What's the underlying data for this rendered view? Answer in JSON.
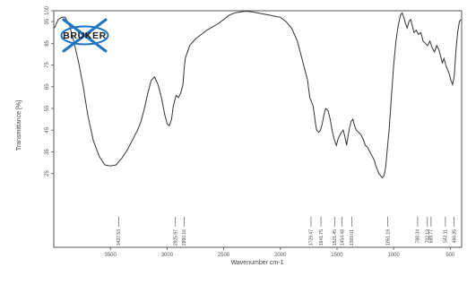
{
  "chart_data": {
    "type": "line",
    "title": "",
    "xlabel": "Wavenumber cm-1",
    "ylabel": "Transmittance [%]",
    "xlim": [
      4000,
      400
    ],
    "ylim": [
      10,
      100
    ],
    "x_ticks": [
      3500,
      3000,
      2500,
      2000,
      1500,
      1000,
      500
    ],
    "x_tick_labels": [
      "3500",
      "3000",
      "2500",
      "2000",
      "1500",
      "1000",
      "500"
    ],
    "y_ticks": [
      25,
      35,
      45,
      55,
      65,
      75,
      85,
      95,
      100
    ],
    "y_tick_labels": [
      "25",
      "35",
      "45",
      "55",
      "65",
      "75",
      "85",
      "95",
      "100"
    ],
    "grid": false,
    "legend": "none",
    "series": [
      {
        "color": "#333333",
        "x": [
          3995,
          3960,
          3930,
          3900,
          3860,
          3820,
          3780,
          3740,
          3700,
          3650,
          3600,
          3550,
          3500,
          3450,
          3400,
          3350,
          3300,
          3260,
          3230,
          3200,
          3170,
          3140,
          3110,
          3080,
          3050,
          3020,
          3000,
          2980,
          2960,
          2945,
          2930,
          2920,
          2900,
          2880,
          2860,
          2851,
          2840,
          2800,
          2750,
          2700,
          2650,
          2600,
          2550,
          2500,
          2450,
          2400,
          2350,
          2300,
          2250,
          2200,
          2150,
          2100,
          2050,
          2000,
          1950,
          1900,
          1850,
          1800,
          1760,
          1740,
          1725,
          1710,
          1700,
          1690,
          1680,
          1660,
          1645,
          1630,
          1615,
          1600,
          1580,
          1560,
          1540,
          1520,
          1505,
          1490,
          1472,
          1460,
          1445,
          1430,
          1415,
          1403,
          1390,
          1375,
          1360,
          1345,
          1330,
          1310,
          1290,
          1270,
          1250,
          1230,
          1210,
          1190,
          1170,
          1160,
          1145,
          1130,
          1115,
          1100,
          1085,
          1070,
          1058,
          1040,
          1020,
          1000,
          980,
          960,
          940,
          925,
          910,
          895,
          880,
          865,
          850,
          835,
          820,
          800,
          780,
          760,
          740,
          720,
          700,
          680,
          660,
          640,
          620,
          600,
          585,
          570,
          555,
          540,
          525,
          510,
          495,
          480,
          465,
          450,
          435,
          420,
          405
        ],
        "y": [
          92,
          96,
          97,
          97,
          93,
          85,
          76,
          65,
          52,
          40,
          33,
          29,
          28.5,
          29,
          32,
          36,
          41,
          45,
          49,
          55,
          62,
          68,
          69.5,
          66,
          60,
          52,
          48,
          47,
          50,
          56,
          59,
          61,
          60,
          62,
          66,
          72,
          78,
          84,
          87,
          89,
          91,
          92.5,
          94,
          96,
          98,
          99,
          99.5,
          99.8,
          99.5,
          99,
          98.5,
          98,
          97.5,
          97,
          95,
          92,
          86,
          76,
          68,
          60,
          58,
          56,
          52,
          48,
          45,
          44,
          45,
          48,
          52,
          55,
          54,
          50,
          44,
          40,
          38,
          41,
          43,
          44,
          45,
          42,
          38,
          42,
          46,
          49,
          50,
          47,
          45,
          44,
          43,
          41,
          38,
          37,
          35,
          33,
          31,
          29,
          27,
          25,
          24,
          23,
          24,
          28,
          35,
          45,
          60,
          75,
          86,
          93,
          98,
          99,
          97,
          94,
          92,
          95,
          96,
          93,
          90,
          91,
          89,
          90,
          86,
          85,
          84,
          86,
          83,
          81,
          84,
          82,
          79,
          76,
          78,
          75,
          73,
          71,
          68,
          66,
          70,
          82,
          90,
          95,
          96
        ]
      }
    ],
    "peak_labels": [
      "3427.53",
      "2925.97",
      "2850.16",
      "1729.47",
      "1641.75",
      "1521.45",
      "1454.48",
      "1369.01",
      "1051.19",
      "788.34",
      "702.13",
      "669.77",
      "543.11",
      "466.35"
    ],
    "peak_x": [
      3427.53,
      2925.97,
      2850.16,
      1729.47,
      1641.75,
      1521.45,
      1454.48,
      1369.01,
      1051.19,
      788.34,
      702.13,
      669.77,
      543.11,
      466.35
    ]
  },
  "logo": {
    "text": "BRUKER"
  }
}
